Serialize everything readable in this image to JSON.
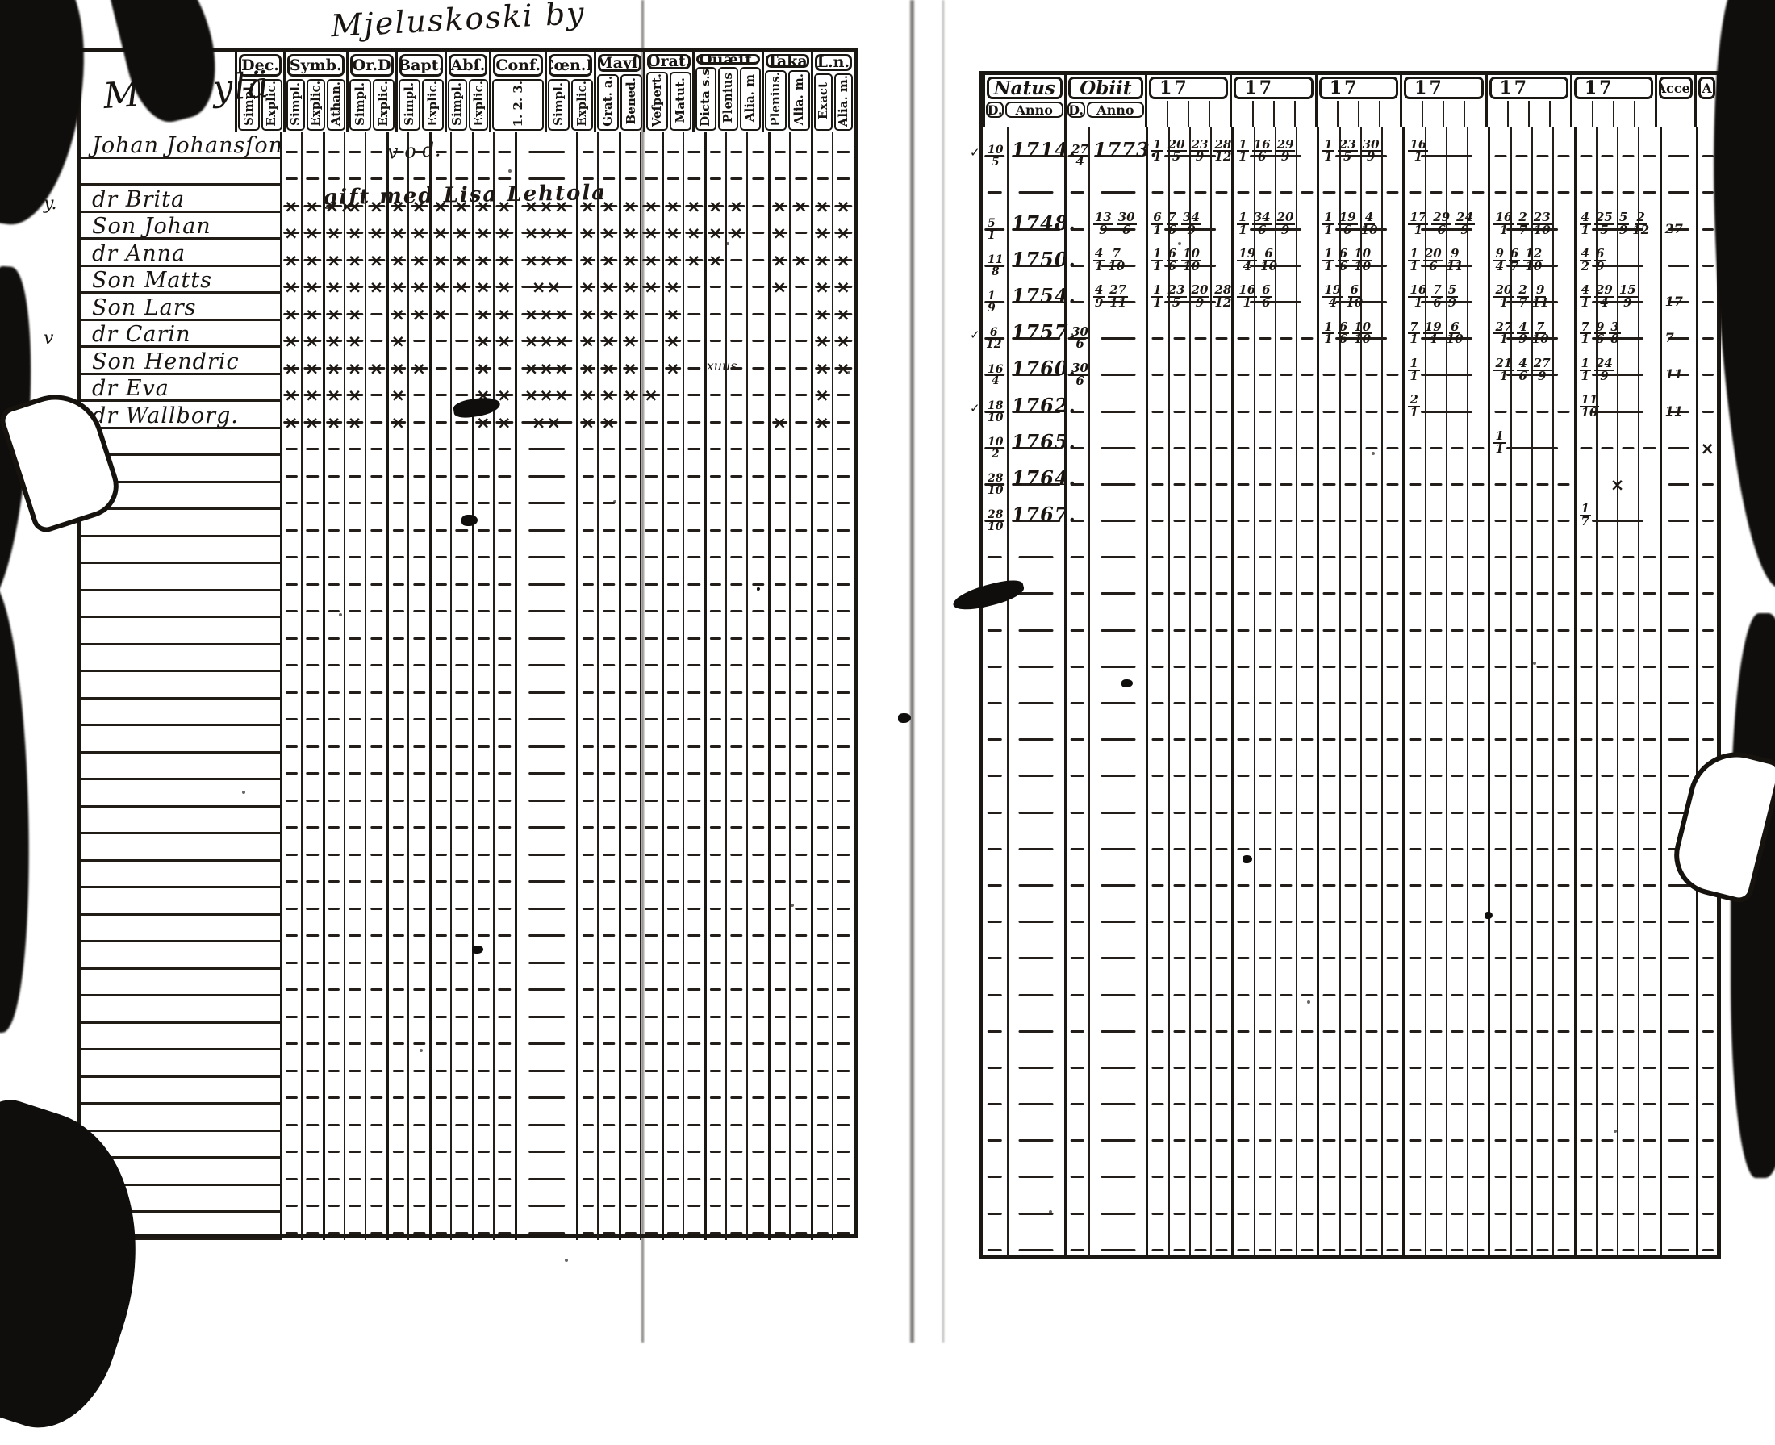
{
  "page_title": "Mjeluskoski by",
  "left_page": {
    "name_header": "Mändylä",
    "groups": [
      {
        "label": "Dec.",
        "subs": [
          "Simpl.",
          "Explic."
        ]
      },
      {
        "label": "Symb.",
        "subs": [
          "Simpl.",
          "Explic.",
          "Athan."
        ]
      },
      {
        "label": "Or.D",
        "subs": [
          "Simpl.",
          "Explic."
        ]
      },
      {
        "label": "Bapt.",
        "subs": [
          "Simpl.",
          "Explic."
        ]
      },
      {
        "label": "Abſ.",
        "subs": [
          "Simpl.",
          "Explic."
        ]
      },
      {
        "label": "Conf.",
        "subs": [
          "1.  2.  3."
        ]
      },
      {
        "label": "Cœn.D",
        "subs": [
          "Simpl.",
          "Explic."
        ]
      },
      {
        "label": "Mayſ.",
        "subs": [
          "Grat. a.",
          "Bened."
        ]
      },
      {
        "label": "Orat.",
        "subs": [
          "Veſpert.",
          "Matut."
        ]
      },
      {
        "label": "Quæſt.",
        "subs": [
          "Dicta s.s",
          "Plenius",
          "Alia. m"
        ]
      },
      {
        "label": "Taka",
        "subs": [
          "Plenius.",
          "Alia. m."
        ]
      },
      {
        "label": "L.n.",
        "subs": [
          "Exact",
          "Alia. m."
        ]
      }
    ],
    "annotations": [
      {
        "text": "v o d.",
        "row": 0
      },
      {
        "text": "gift med Lisa Lehtola",
        "row": 2
      }
    ],
    "margin_marks": [
      {
        "text": "y.",
        "row": 2
      },
      {
        "text": "v",
        "row": 7
      },
      {
        "text": "#",
        "row": 10
      }
    ],
    "rows": [
      {
        "name": "Johan Johansſon",
        "cells": [
          "-",
          "-",
          "-",
          "-",
          "-",
          "-",
          "-",
          "-",
          "-",
          "-",
          "-",
          "-",
          "-",
          "-",
          "-",
          "-",
          "-",
          "-",
          "-",
          "-",
          "-",
          "-",
          "-",
          "-",
          "-"
        ]
      },
      {
        "name": "",
        "cells": [
          "-",
          "-",
          "-",
          "-",
          "-",
          "-",
          "-",
          "-",
          "-",
          "-",
          "-",
          "-",
          "-",
          "-",
          "-",
          "-",
          "-",
          "-",
          "-",
          "-",
          "-",
          "-",
          "-",
          "-",
          "-"
        ]
      },
      {
        "name": "dr Brita",
        "cells": [
          "x",
          "x",
          "xx",
          "x",
          "x",
          "x",
          "x",
          "x",
          "x",
          "x",
          "x",
          "xxx",
          "x",
          "x",
          "x",
          "x",
          "x",
          "x",
          "x",
          "x",
          "-",
          "x",
          "x",
          "x",
          "x"
        ]
      },
      {
        "name": "Son Johan",
        "cells": [
          "x",
          "x",
          "x",
          "x",
          "x",
          "x",
          "x",
          "x",
          "x",
          "x",
          "x",
          "xxx",
          "x",
          "x",
          "x",
          "x",
          "x",
          "x",
          "x",
          "x",
          "-",
          "x",
          "-",
          "x",
          "x"
        ]
      },
      {
        "name": "dr Anna",
        "cells": [
          "x",
          "x",
          "x",
          "x",
          "x",
          "x",
          "x",
          "x",
          "x",
          "x",
          "x",
          "xxx",
          "x",
          "x",
          "x",
          "x",
          "x",
          "x",
          "x",
          "-",
          "-",
          "x",
          "x",
          "x",
          "x"
        ]
      },
      {
        "name": "Son Matts",
        "cells": [
          "x",
          "x",
          "x",
          "x",
          "x",
          "x",
          "x",
          "x",
          "x",
          "x",
          "x",
          "xx",
          "x",
          "x",
          "x",
          "x",
          "x",
          "-",
          "-",
          "-",
          "-",
          "x",
          "-",
          "x",
          "x"
        ]
      },
      {
        "name": "Son Lars",
        "cells": [
          "x",
          "x",
          "x",
          "x",
          "-",
          "x",
          "x",
          "x",
          "-",
          "x",
          "x",
          "xxx",
          "x",
          "x",
          "x",
          "-",
          "x",
          "-",
          "-",
          "-",
          "-",
          "-",
          "-",
          "x",
          "x"
        ]
      },
      {
        "name": "dr Carin",
        "cells": [
          "x",
          "x",
          "x",
          "x",
          "-",
          "x",
          "-",
          "-",
          "-",
          "x",
          "x",
          "xxx",
          "x",
          "x",
          "x",
          "-",
          "x",
          "-",
          "-",
          "-",
          "-",
          "-",
          "-",
          "x",
          "x"
        ]
      },
      {
        "name": "Son Hendric",
        "cells": [
          "x",
          "x",
          "x",
          "x",
          "x",
          "x",
          "x",
          "-",
          "-",
          "x",
          "-",
          "xxx",
          "x",
          "x",
          "x",
          "-",
          "x",
          "-",
          "xuus",
          "-",
          "-",
          "-",
          "-",
          "x",
          "x"
        ]
      },
      {
        "name": "dr Eva",
        "cells": [
          "x",
          "x",
          "x",
          "x",
          "-",
          "x",
          "-",
          "-",
          "-",
          "x",
          "x",
          "xxx",
          "x",
          "x",
          "x",
          "x",
          "-",
          "-",
          "-",
          "-",
          "-",
          "-",
          "-",
          "x",
          "-"
        ]
      },
      {
        "name": "dr Wallborg.",
        "cells": [
          "x",
          "x",
          "x",
          "x",
          "-",
          "x",
          "-",
          "-",
          "-",
          "x",
          "x",
          "xx",
          "x",
          "x",
          "-",
          "-",
          "-",
          "-",
          "-",
          "-",
          "-",
          "x",
          "-",
          "x",
          "-"
        ]
      }
    ],
    "blank_row_count": 30
  },
  "right_page": {
    "natus_label": "Natus",
    "obiit_label": "Obiit",
    "sub_d": "D.",
    "sub_anno": "Anno",
    "year_label": "17",
    "year_count": 6,
    "accessit_label": "Acceſ",
    "abiit_label": "A",
    "rows": [
      {
        "chk": "✓",
        "nd": "10/5",
        "na": "1714.",
        "od": "27/4",
        "oa": "1773.",
        "years": [
          "1/1 20/5 23/9 28/12",
          "1/1 16/6 29/9",
          "1/1 23/5 30/9",
          "16/1",
          "-",
          "-"
        ],
        "acc": "-",
        "ax": "-"
      },
      {
        "chk": "",
        "nd": "-",
        "na": "-",
        "od": "-",
        "oa": "-",
        "years": [
          "-",
          "-",
          "-",
          "-",
          "-",
          "-"
        ],
        "acc": "-",
        "ax": "-"
      },
      {
        "chk": "",
        "nd": "5/1",
        "na": "1748.",
        "od": "-",
        "oa": "13/9 30/6",
        "years": [
          "6/1 7/6 34/9",
          "1/1 34/6 20/9",
          "1/1 19/6 4/10",
          "17/1 29/6 24/9",
          "16/1 2/7 23/10",
          "4/1 25/5 5/9 2/12"
        ],
        "acc": "27",
        "ax": "-"
      },
      {
        "chk": "",
        "nd": "11/8",
        "na": "1750.",
        "od": "-",
        "oa": "4/1 7/10",
        "years": [
          "1/1 6/6 10/10",
          "19/4 6/10",
          "1/1 6/6 10/10",
          "1/1 20/6 9/11",
          "9/4 6/7 12/10",
          "4/2 6/9"
        ],
        "acc": "-",
        "ax": "-"
      },
      {
        "chk": "",
        "nd": "1/9",
        "na": "1754.",
        "od": "-",
        "oa": "4/9 27/11",
        "years": [
          "1/1 23/5 20/9 28/12",
          "16/1 6/6",
          "19/4 6/10",
          "16/1 7/6 5/9",
          "20/1 2/7 9/11",
          "4/1 29/4 15/9"
        ],
        "acc": "17",
        "ax": "-"
      },
      {
        "chk": "✓",
        "nd": "6/12",
        "na": "1757.",
        "od": "30/6",
        "oa": "-",
        "years": [
          "-",
          "-",
          "1/1 6/6 10/10",
          "7/1 19/4 6/10",
          "27/1 4/9 7/10",
          "7/1 9/6 3/8"
        ],
        "acc": "7",
        "ax": "-"
      },
      {
        "chk": "",
        "nd": "16/4",
        "na": "1760.",
        "od": "30/6",
        "oa": "-",
        "years": [
          "-",
          "-",
          "-",
          "1/1",
          "21/1 4/6 27/9",
          "1/1 24/9"
        ],
        "acc": "11",
        "ax": "-"
      },
      {
        "chk": "✓",
        "nd": "18/10",
        "na": "1762.",
        "od": "-",
        "oa": "-",
        "years": [
          "-",
          "-",
          "-",
          "2/1",
          "-",
          "11/10"
        ],
        "acc": "11",
        "ax": "-"
      },
      {
        "chk": "",
        "nd": "10/2",
        "na": "1765.",
        "od": "-",
        "oa": "-",
        "years": [
          "-",
          "-",
          "-",
          "-",
          "1/1",
          "-"
        ],
        "acc": "-",
        "ax": "x"
      },
      {
        "chk": "",
        "nd": "28/10",
        "na": "1764.",
        "od": "-",
        "oa": "-",
        "years": [
          "-",
          "-",
          "-",
          "-",
          "-",
          "x"
        ],
        "acc": "-",
        "ax": "-"
      },
      {
        "chk": "",
        "nd": "28/10",
        "na": "1767.",
        "od": "-",
        "oa": "-",
        "years": [
          "-",
          "-",
          "-",
          "-",
          "-",
          "1/7"
        ],
        "acc": "-",
        "ax": "-"
      }
    ],
    "blank_row_count": 20
  }
}
